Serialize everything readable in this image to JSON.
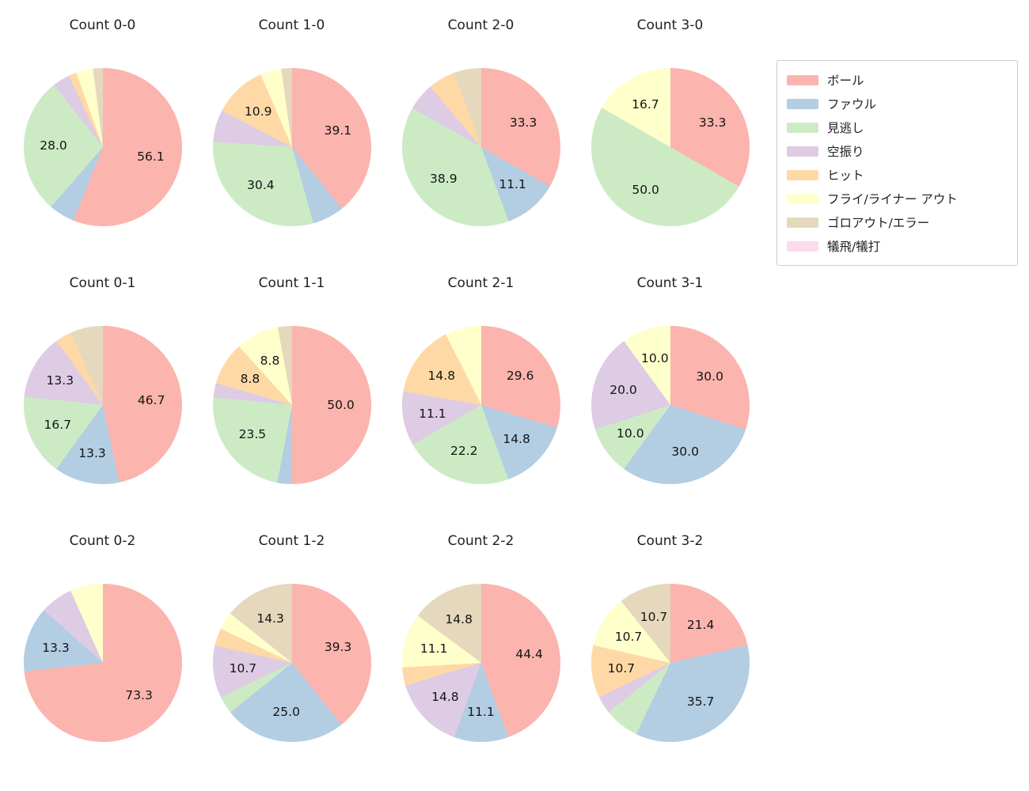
{
  "figure": {
    "background": "#ffffff",
    "text_color": "#1f1f1f"
  },
  "legend": {
    "position": "top-right",
    "border_color": "#cccccc",
    "entries": [
      {
        "label": "ボール",
        "color": "#fbb4ae"
      },
      {
        "label": "ファウル",
        "color": "#b3cde3"
      },
      {
        "label": "見逃し",
        "color": "#ccebc5"
      },
      {
        "label": "空振り",
        "color": "#decbe4"
      },
      {
        "label": "ヒット",
        "color": "#fed9a6"
      },
      {
        "label": "フライ/ライナー アウト",
        "color": "#ffffcc"
      },
      {
        "label": "ゴロアウト/エラー",
        "color": "#e5d8bd"
      },
      {
        "label": "犠飛/犠打",
        "color": "#fddaec"
      }
    ]
  },
  "chart_data": {
    "type": "pie",
    "layout": {
      "rows": 3,
      "cols": 4,
      "start_angle_deg": 90,
      "direction": "clockwise",
      "label_distance": 0.62,
      "grid": false
    },
    "unit": "percent",
    "categories": [
      "ボール",
      "ファウル",
      "見逃し",
      "空振り",
      "ヒット",
      "フライ/ライナー アウト",
      "ゴロアウト/エラー",
      "犠飛/犠打"
    ],
    "charts": [
      {
        "title": "Count 0-0",
        "slices": [
          {
            "category": "ボール",
            "value": 56.1,
            "label": "56.1",
            "color": "#fbb4ae"
          },
          {
            "category": "ファウル",
            "value": 5.3,
            "label": null,
            "color": "#b3cde3"
          },
          {
            "category": "見逃し",
            "value": 28.0,
            "label": "28.0",
            "color": "#ccebc5"
          },
          {
            "category": "空振り",
            "value": 3.5,
            "label": null,
            "color": "#decbe4"
          },
          {
            "category": "ヒット",
            "value": 1.6,
            "label": null,
            "color": "#fed9a6"
          },
          {
            "category": "フライ/ライナー アウト",
            "value": 3.5,
            "label": null,
            "color": "#ffffcc"
          },
          {
            "category": "ゴロアウト/エラー",
            "value": 2.0,
            "label": null,
            "color": "#e5d8bd"
          }
        ]
      },
      {
        "title": "Count 1-0",
        "slices": [
          {
            "category": "ボール",
            "value": 39.1,
            "label": "39.1",
            "color": "#fbb4ae"
          },
          {
            "category": "ファウル",
            "value": 6.5,
            "label": null,
            "color": "#b3cde3"
          },
          {
            "category": "見逃し",
            "value": 30.4,
            "label": "30.4",
            "color": "#ccebc5"
          },
          {
            "category": "空振り",
            "value": 6.5,
            "label": null,
            "color": "#decbe4"
          },
          {
            "category": "ヒット",
            "value": 10.9,
            "label": "10.9",
            "color": "#fed9a6"
          },
          {
            "category": "フライ/ライナー アウト",
            "value": 4.3,
            "label": null,
            "color": "#ffffcc"
          },
          {
            "category": "ゴロアウト/エラー",
            "value": 2.2,
            "label": null,
            "color": "#e5d8bd"
          }
        ]
      },
      {
        "title": "Count 2-0",
        "slices": [
          {
            "category": "ボール",
            "value": 33.3,
            "label": "33.3",
            "color": "#fbb4ae"
          },
          {
            "category": "ファウル",
            "value": 11.1,
            "label": "11.1",
            "color": "#b3cde3"
          },
          {
            "category": "見逃し",
            "value": 38.9,
            "label": "38.9",
            "color": "#ccebc5"
          },
          {
            "category": "空振り",
            "value": 5.6,
            "label": null,
            "color": "#decbe4"
          },
          {
            "category": "ヒット",
            "value": 5.6,
            "label": null,
            "color": "#fed9a6"
          },
          {
            "category": "ゴロアウト/エラー",
            "value": 5.6,
            "label": null,
            "color": "#e5d8bd"
          }
        ]
      },
      {
        "title": "Count 3-0",
        "slices": [
          {
            "category": "ボール",
            "value": 33.3,
            "label": "33.3",
            "color": "#fbb4ae"
          },
          {
            "category": "見逃し",
            "value": 50.0,
            "label": "50.0",
            "color": "#ccebc5"
          },
          {
            "category": "フライ/ライナー アウト",
            "value": 16.7,
            "label": "16.7",
            "color": "#ffffcc"
          }
        ]
      },
      {
        "title": "Count 0-1",
        "slices": [
          {
            "category": "ボール",
            "value": 46.7,
            "label": "46.7",
            "color": "#fbb4ae"
          },
          {
            "category": "ファウル",
            "value": 13.3,
            "label": "13.3",
            "color": "#b3cde3"
          },
          {
            "category": "見逃し",
            "value": 16.7,
            "label": "16.7",
            "color": "#ccebc5"
          },
          {
            "category": "空振り",
            "value": 13.3,
            "label": "13.3",
            "color": "#decbe4"
          },
          {
            "category": "ヒット",
            "value": 3.3,
            "label": null,
            "color": "#fed9a6"
          },
          {
            "category": "ゴロアウト/エラー",
            "value": 6.7,
            "label": null,
            "color": "#e5d8bd"
          }
        ]
      },
      {
        "title": "Count 1-1",
        "slices": [
          {
            "category": "ボール",
            "value": 50.0,
            "label": "50.0",
            "color": "#fbb4ae"
          },
          {
            "category": "ファウル",
            "value": 2.9,
            "label": null,
            "color": "#b3cde3"
          },
          {
            "category": "見逃し",
            "value": 23.5,
            "label": "23.5",
            "color": "#ccebc5"
          },
          {
            "category": "空振り",
            "value": 2.9,
            "label": null,
            "color": "#decbe4"
          },
          {
            "category": "ヒット",
            "value": 8.8,
            "label": "8.8",
            "color": "#fed9a6"
          },
          {
            "category": "フライ/ライナー アウト",
            "value": 8.8,
            "label": "8.8",
            "color": "#ffffcc"
          },
          {
            "category": "ゴロアウト/エラー",
            "value": 2.9,
            "label": null,
            "color": "#e5d8bd"
          }
        ]
      },
      {
        "title": "Count 2-1",
        "slices": [
          {
            "category": "ボール",
            "value": 29.6,
            "label": "29.6",
            "color": "#fbb4ae"
          },
          {
            "category": "ファウル",
            "value": 14.8,
            "label": "14.8",
            "color": "#b3cde3"
          },
          {
            "category": "見逃し",
            "value": 22.2,
            "label": "22.2",
            "color": "#ccebc5"
          },
          {
            "category": "空振り",
            "value": 11.1,
            "label": "11.1",
            "color": "#decbe4"
          },
          {
            "category": "ヒット",
            "value": 14.8,
            "label": "14.8",
            "color": "#fed9a6"
          },
          {
            "category": "フライ/ライナー アウト",
            "value": 7.4,
            "label": null,
            "color": "#ffffcc"
          }
        ]
      },
      {
        "title": "Count 3-1",
        "slices": [
          {
            "category": "ボール",
            "value": 30.0,
            "label": "30.0",
            "color": "#fbb4ae"
          },
          {
            "category": "ファウル",
            "value": 30.0,
            "label": "30.0",
            "color": "#b3cde3"
          },
          {
            "category": "見逃し",
            "value": 10.0,
            "label": "10.0",
            "color": "#ccebc5"
          },
          {
            "category": "空振り",
            "value": 20.0,
            "label": "20.0",
            "color": "#decbe4"
          },
          {
            "category": "フライ/ライナー アウト",
            "value": 10.0,
            "label": "10.0",
            "color": "#ffffcc"
          }
        ]
      },
      {
        "title": "Count 0-2",
        "slices": [
          {
            "category": "ボール",
            "value": 73.3,
            "label": "73.3",
            "color": "#fbb4ae"
          },
          {
            "category": "ファウル",
            "value": 13.3,
            "label": "13.3",
            "color": "#b3cde3"
          },
          {
            "category": "空振り",
            "value": 6.7,
            "label": null,
            "color": "#decbe4"
          },
          {
            "category": "フライ/ライナー アウト",
            "value": 6.7,
            "label": null,
            "color": "#ffffcc"
          }
        ]
      },
      {
        "title": "Count 1-2",
        "slices": [
          {
            "category": "ボール",
            "value": 39.3,
            "label": "39.3",
            "color": "#fbb4ae"
          },
          {
            "category": "ファウル",
            "value": 25.0,
            "label": "25.0",
            "color": "#b3cde3"
          },
          {
            "category": "見逃し",
            "value": 3.6,
            "label": null,
            "color": "#ccebc5"
          },
          {
            "category": "空振り",
            "value": 10.7,
            "label": "10.7",
            "color": "#decbe4"
          },
          {
            "category": "ヒット",
            "value": 3.6,
            "label": null,
            "color": "#fed9a6"
          },
          {
            "category": "フライ/ライナー アウト",
            "value": 3.6,
            "label": null,
            "color": "#ffffcc"
          },
          {
            "category": "ゴロアウト/エラー",
            "value": 14.3,
            "label": "14.3",
            "color": "#e5d8bd"
          }
        ]
      },
      {
        "title": "Count 2-2",
        "slices": [
          {
            "category": "ボール",
            "value": 44.4,
            "label": "44.4",
            "color": "#fbb4ae"
          },
          {
            "category": "ファウル",
            "value": 11.1,
            "label": "11.1",
            "color": "#b3cde3"
          },
          {
            "category": "空振り",
            "value": 14.8,
            "label": "14.8",
            "color": "#decbe4"
          },
          {
            "category": "ヒット",
            "value": 3.7,
            "label": null,
            "color": "#fed9a6"
          },
          {
            "category": "フライ/ライナー アウト",
            "value": 11.1,
            "label": "11.1",
            "color": "#ffffcc"
          },
          {
            "category": "ゴロアウト/エラー",
            "value": 14.8,
            "label": "14.8",
            "color": "#e5d8bd"
          }
        ]
      },
      {
        "title": "Count 3-2",
        "slices": [
          {
            "category": "ボール",
            "value": 21.4,
            "label": "21.4",
            "color": "#fbb4ae"
          },
          {
            "category": "ファウル",
            "value": 35.7,
            "label": "35.7",
            "color": "#b3cde3"
          },
          {
            "category": "見逃し",
            "value": 7.1,
            "label": null,
            "color": "#ccebc5"
          },
          {
            "category": "空振り",
            "value": 3.6,
            "label": null,
            "color": "#decbe4"
          },
          {
            "category": "ヒット",
            "value": 10.7,
            "label": "10.7",
            "color": "#fed9a6"
          },
          {
            "category": "フライ/ライナー アウト",
            "value": 10.7,
            "label": "10.7",
            "color": "#ffffcc"
          },
          {
            "category": "ゴロアウト/エラー",
            "value": 10.7,
            "label": "10.7",
            "color": "#e5d8bd"
          }
        ]
      }
    ]
  }
}
